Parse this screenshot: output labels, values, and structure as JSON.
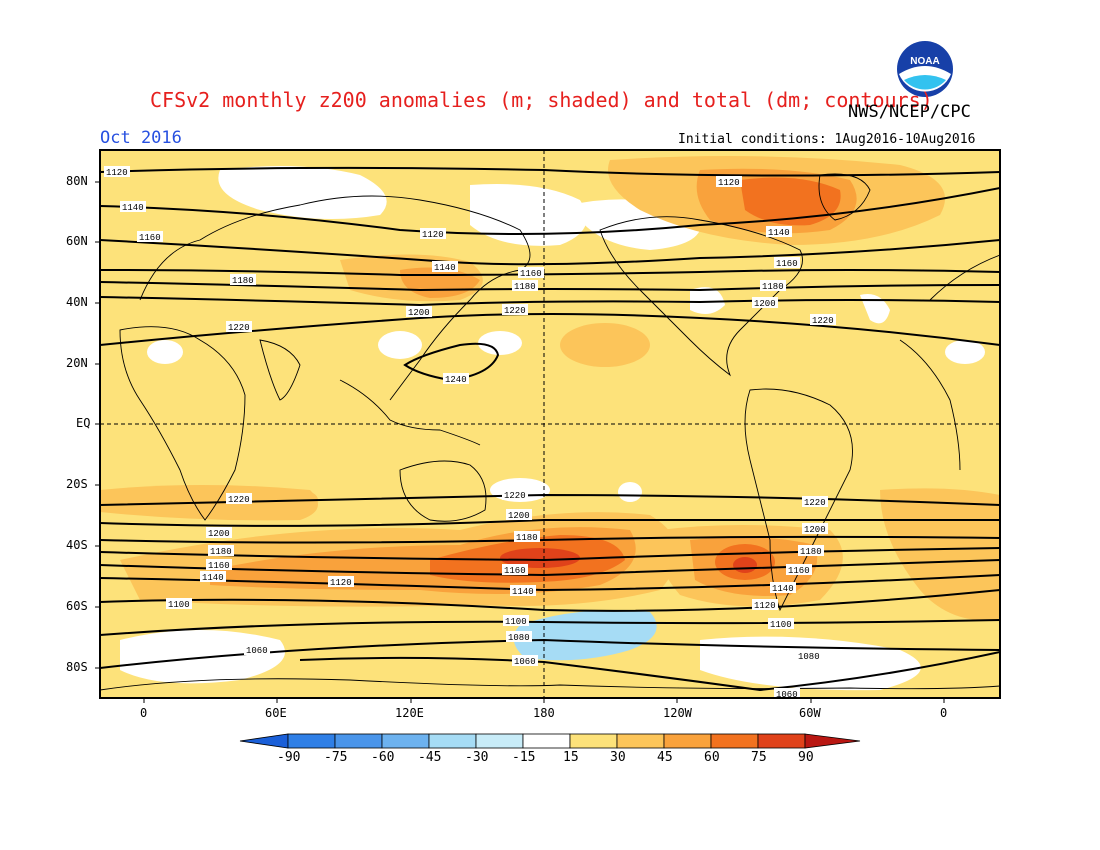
{
  "title": "CFSv2 monthly z200 anomalies (m; shaded) and total (dm; contours)",
  "agency": "NWS/NCEP/CPC",
  "month": "Oct 2016",
  "initial_conditions": "Initial conditions: 1Aug2016-10Aug2016",
  "logo_text": "NOAA",
  "lat_labels": [
    "80N",
    "60N",
    "40N",
    "20N",
    "EQ",
    "20S",
    "40S",
    "60S",
    "80S"
  ],
  "lon_labels": [
    "0",
    "60E",
    "120E",
    "180",
    "120W",
    "60W",
    "0"
  ],
  "colorbar": {
    "labels": [
      "-90",
      "-75",
      "-60",
      "-45",
      "-30",
      "-15",
      "15",
      "30",
      "45",
      "60",
      "75",
      "90"
    ],
    "colors": [
      "#1a5fd8",
      "#2f7fe6",
      "#4a95ea",
      "#6db2ef",
      "#a6dcf5",
      "#ffffff",
      "#fde27a",
      "#fcc55a",
      "#f9a23c",
      "#f2721f",
      "#e0421a",
      "#b91712"
    ]
  },
  "contour_labels": [
    "1060",
    "1080",
    "1100",
    "1120",
    "1140",
    "1160",
    "1180",
    "1200",
    "1220",
    "1240"
  ],
  "colors": {
    "title": "#e6201e",
    "month": "#2750e0",
    "background_anomaly": "#fde27a"
  }
}
